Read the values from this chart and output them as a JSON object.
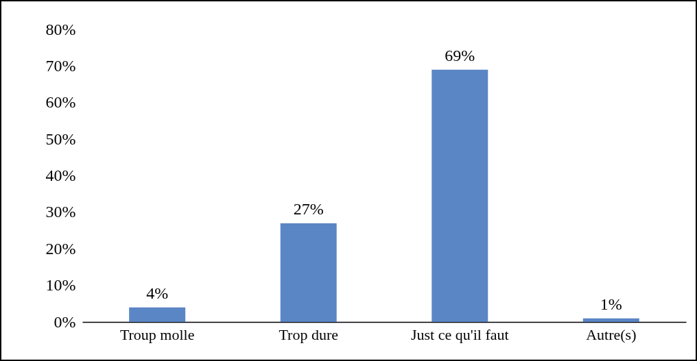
{
  "chart_data": {
    "type": "bar",
    "categories": [
      "Troup molle",
      "Trop dure",
      "Just ce qu'il faut",
      "Autre(s)"
    ],
    "values": [
      4,
      27,
      69,
      1
    ],
    "value_labels": [
      "4%",
      "27%",
      "69%",
      "1%"
    ],
    "color": "#5b86c6",
    "ylim": [
      0,
      80
    ],
    "yticks": [
      {
        "value": 0,
        "label": "0%"
      },
      {
        "value": 10,
        "label": "10%"
      },
      {
        "value": 20,
        "label": "20%"
      },
      {
        "value": 30,
        "label": "30%"
      },
      {
        "value": 40,
        "label": "40%"
      },
      {
        "value": 50,
        "label": "50%"
      },
      {
        "value": 60,
        "label": "60%"
      },
      {
        "value": 70,
        "label": "70%"
      },
      {
        "value": 80,
        "label": "80%"
      }
    ],
    "grid": false
  }
}
